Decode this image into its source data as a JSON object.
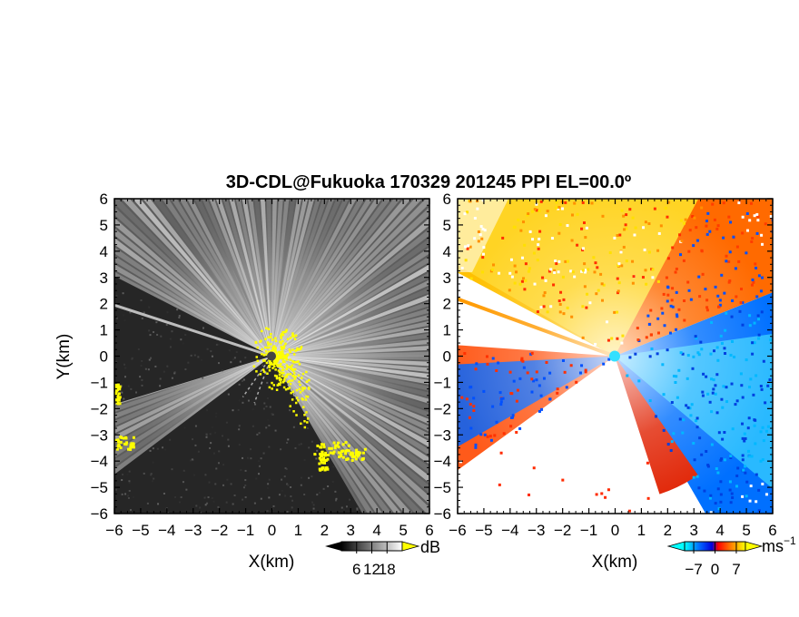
{
  "title": "3D-CDL@Fukuoka 170329 201245 PPI EL=00.0º",
  "chart_data": [
    {
      "type": "heatmap",
      "panel": "left",
      "quantity": "SNR",
      "xlabel": "X(km)",
      "ylabel": "Y(km)",
      "xlim": [
        -6,
        6
      ],
      "ylim": [
        -6,
        6
      ],
      "xticks": [
        -6,
        -5,
        -4,
        -3,
        -2,
        -1,
        0,
        1,
        2,
        3,
        4,
        5,
        6
      ],
      "yticks": [
        -6,
        -5,
        -4,
        -3,
        -2,
        -1,
        0,
        1,
        2,
        3,
        4,
        5,
        6
      ],
      "colorbar": {
        "unit": "dB",
        "tick_values": [
          6,
          12,
          18
        ],
        "tick_labels": [
          "6",
          "12",
          "18"
        ],
        "range": [
          0,
          24
        ],
        "colors": [
          "#000000",
          "#ffffff"
        ],
        "overflow_color": "#ffff00"
      },
      "blocked_sectors_deg": [
        [
          153,
          197
        ],
        [
          217,
          300
        ]
      ],
      "ray_azimuths_deg": [
        162
      ]
    },
    {
      "type": "heatmap",
      "panel": "right",
      "quantity": "radial velocity",
      "xlabel": "X(km)",
      "xlim": [
        -6,
        6
      ],
      "ylim": [
        -6,
        6
      ],
      "xticks": [
        -6,
        -5,
        -4,
        -3,
        -2,
        -1,
        0,
        1,
        2,
        3,
        4,
        5,
        6
      ],
      "yticks": [
        -6,
        -5,
        -4,
        -3,
        -2,
        -1,
        0,
        1,
        2,
        3,
        4,
        5,
        6
      ],
      "colorbar": {
        "unit": "ms",
        "unit_superscript": "−1",
        "tick_values": [
          -7,
          0,
          7
        ],
        "tick_labels": [
          "−7",
          "0",
          "7"
        ],
        "range": [
          -10,
          10
        ],
        "colors": [
          "#00ffff",
          "#0066ff",
          "#0000dd",
          "#ff0000",
          "#ff8800",
          "#ffff00"
        ]
      },
      "blocked_sectors_deg": [
        [
          153,
          175
        ],
        [
          217,
          300
        ]
      ],
      "ray_azimuths_deg": [
        160
      ]
    }
  ]
}
